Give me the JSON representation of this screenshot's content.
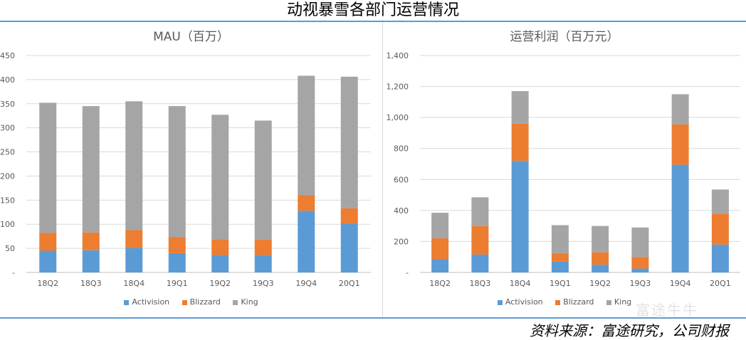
{
  "page_title": "动视暴雪各部门运营情况",
  "source": "资料来源：富途研究，公司财报",
  "watermark": "富途牛牛",
  "colors": {
    "Activision": "#5b9bd5",
    "Blizzard": "#ed7d31",
    "King": "#a5a5a5",
    "accent": "#5b9bd5"
  },
  "chart_data": [
    {
      "type": "bar",
      "stacked": true,
      "title": "MAU（百万）",
      "categories": [
        "18Q2",
        "18Q3",
        "18Q4",
        "19Q1",
        "19Q2",
        "19Q3",
        "19Q4",
        "20Q1"
      ],
      "series": [
        {
          "name": "Activision",
          "values": [
            45,
            46,
            51,
            40,
            36,
            36,
            128,
            101
          ]
        },
        {
          "name": "Blizzard",
          "values": [
            37,
            37,
            37,
            33,
            33,
            32,
            32,
            32
          ]
        },
        {
          "name": "King",
          "values": [
            270,
            262,
            267,
            272,
            258,
            247,
            248,
            273
          ]
        }
      ],
      "yticks": [
        "-",
        "50",
        "100",
        "150",
        "200",
        "250",
        "300",
        "350",
        "400",
        "450"
      ],
      "ylim": [
        0,
        450
      ],
      "legend": "bottom",
      "grid": true
    },
    {
      "type": "bar",
      "stacked": true,
      "title": "运营利润（百万元）",
      "categories": [
        "18Q2",
        "18Q3",
        "18Q4",
        "19Q1",
        "19Q2",
        "19Q3",
        "19Q4",
        "20Q1"
      ],
      "series": [
        {
          "name": "Activision",
          "values": [
            85,
            115,
            720,
            70,
            50,
            25,
            695,
            180
          ]
        },
        {
          "name": "Blizzard",
          "values": [
            135,
            185,
            240,
            55,
            80,
            75,
            260,
            200
          ]
        },
        {
          "name": "King",
          "values": [
            165,
            185,
            210,
            180,
            170,
            190,
            195,
            155
          ]
        }
      ],
      "yticks": [
        "-",
        "200",
        "400",
        "600",
        "800",
        "1,000",
        "1,200",
        "1,400"
      ],
      "ylim": [
        0,
        1400
      ],
      "legend": "bottom",
      "grid": true
    }
  ]
}
